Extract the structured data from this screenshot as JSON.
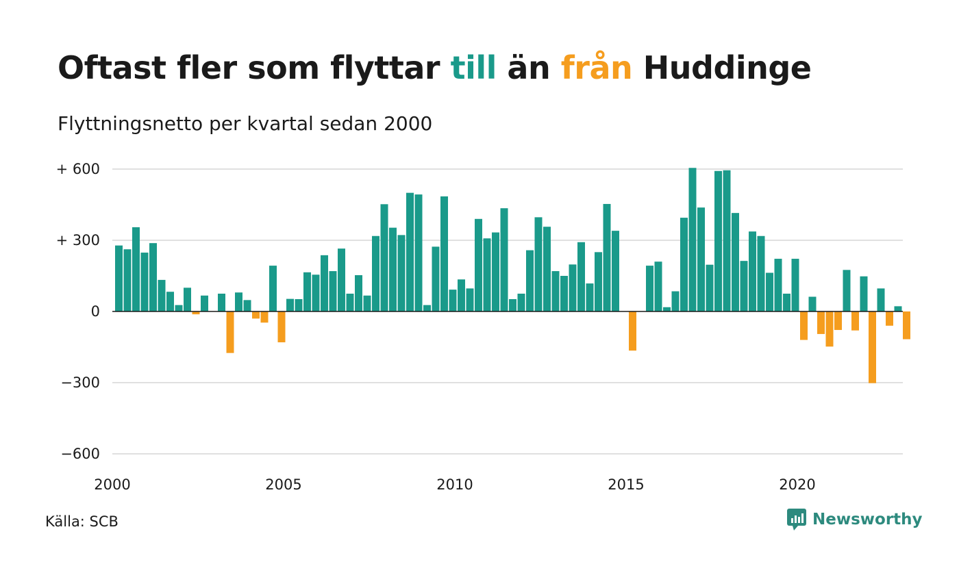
{
  "title": {
    "part1": "Oftast fler som flyttar ",
    "word_to": "till",
    "part2": " än ",
    "word_from": "från",
    "part3": " Huddinge"
  },
  "subtitle": "Flyttningsnetto per kvartal sedan 2000",
  "source": "Källa: SCB",
  "brand": "Newsworthy",
  "colors": {
    "positive": "#1a9a8a",
    "negative": "#f59d1e",
    "brand": "#2d8a7e",
    "grid": "#e0e0e0",
    "axis": "#1a1a1a"
  },
  "chart_data": {
    "type": "bar",
    "title": "Flyttningsnetto per kvartal sedan 2000",
    "ylim": [
      -600,
      600
    ],
    "yticks": [
      {
        "value": 600,
        "label": "+ 600"
      },
      {
        "value": 300,
        "label": "+ 300"
      },
      {
        "value": 0,
        "label": "0"
      },
      {
        "value": -300,
        "label": "−300"
      },
      {
        "value": -600,
        "label": "−600"
      }
    ],
    "xticks": [
      "2000",
      "2005",
      "2010",
      "2015",
      "2020"
    ],
    "x_start_year": 2000,
    "quarters_per_year": 4,
    "grid": true,
    "values": [
      278,
      262,
      355,
      248,
      288,
      133,
      83,
      27,
      100,
      -12,
      67,
      0,
      75,
      -175,
      80,
      48,
      -30,
      -47,
      193,
      -130,
      53,
      52,
      165,
      155,
      237,
      170,
      265,
      75,
      153,
      67,
      318,
      452,
      353,
      322,
      500,
      493,
      27,
      273,
      485,
      92,
      135,
      97,
      390,
      308,
      333,
      435,
      52,
      75,
      258,
      397,
      357,
      170,
      150,
      198,
      292,
      118,
      250,
      453,
      340,
      0,
      -165,
      0,
      193,
      210,
      18,
      85,
      395,
      605,
      438,
      197,
      592,
      595,
      415,
      213,
      337,
      318,
      163,
      222,
      75,
      222,
      -120,
      62,
      -95,
      -148,
      -78,
      175,
      -80,
      148,
      -302,
      97,
      -60,
      22,
      -117
    ]
  }
}
